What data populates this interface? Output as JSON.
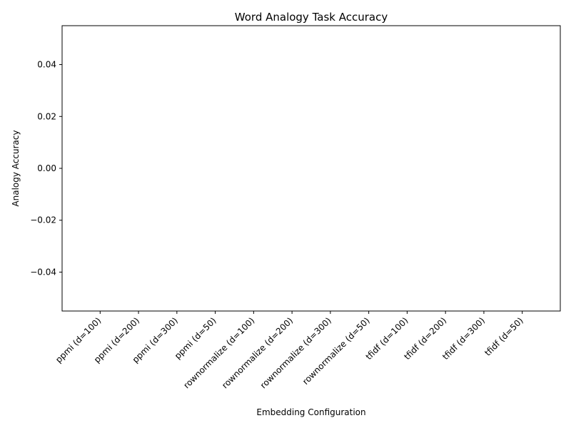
{
  "chart_data": {
    "type": "bar",
    "title": "Word Analogy Task Accuracy",
    "xlabel": "Embedding Configuration",
    "ylabel": "Analogy Accuracy",
    "categories": [
      "ppmi (d=100)",
      "ppmi (d=200)",
      "ppmi (d=300)",
      "ppmi (d=50)",
      "rownormalize (d=100)",
      "rownormalize (d=200)",
      "rownormalize (d=300)",
      "rownormalize (d=50)",
      "tfidf (d=100)",
      "tfidf (d=200)",
      "tfidf (d=300)",
      "tfidf (d=50)"
    ],
    "values": [
      0,
      0,
      0,
      0,
      0,
      0,
      0,
      0,
      0,
      0,
      0,
      0
    ],
    "ylim": [
      -0.055,
      0.055
    ],
    "yticks": [
      -0.04,
      -0.02,
      0.0,
      0.02,
      0.04
    ],
    "ytick_labels": [
      "−0.04",
      "−0.02",
      "0.00",
      "0.02",
      "0.04"
    ],
    "grid": false,
    "bar_color": "#1f77b4"
  }
}
